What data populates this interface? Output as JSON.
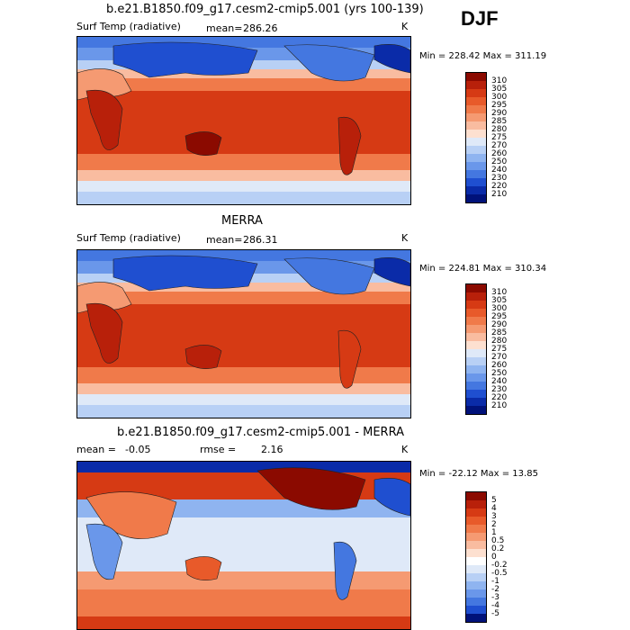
{
  "season": "DJF",
  "panels": [
    {
      "title": "b.e21.B1850.f09_g17.cesm2-cmip5.001 (yrs 100-139)",
      "left_label": "Surf Temp (radiative)",
      "mean_label": "mean=",
      "mean_value": "286.26",
      "rmse_label": "",
      "rmse_value": "",
      "units": "K",
      "minmax": "Min = 228.42 Max = 311.19",
      "levels": [
        "310",
        "305",
        "300",
        "295",
        "290",
        "285",
        "280",
        "275",
        "270",
        "260",
        "250",
        "240",
        "230",
        "220",
        "210"
      ],
      "colors": [
        "#8b0a00",
        "#b8200a",
        "#d63a14",
        "#e85a2a",
        "#f07a4a",
        "#f59a72",
        "#f9bca0",
        "#fde0d0",
        "#dfe9f8",
        "#b8d0f5",
        "#8fb4f0",
        "#6a97ea",
        "#4477e0",
        "#1f4fd0",
        "#0a2ba8",
        "#00127a"
      ]
    },
    {
      "title": "MERRA",
      "left_label": "Surf Temp (radiative)",
      "mean_label": "mean=",
      "mean_value": "286.31",
      "rmse_label": "",
      "rmse_value": "",
      "units": "K",
      "minmax": "Min = 224.81 Max = 310.34",
      "levels": [
        "310",
        "305",
        "300",
        "295",
        "290",
        "285",
        "280",
        "275",
        "270",
        "260",
        "250",
        "240",
        "230",
        "220",
        "210"
      ],
      "colors": [
        "#8b0a00",
        "#b8200a",
        "#d63a14",
        "#e85a2a",
        "#f07a4a",
        "#f59a72",
        "#f9bca0",
        "#fde0d0",
        "#dfe9f8",
        "#b8d0f5",
        "#8fb4f0",
        "#6a97ea",
        "#4477e0",
        "#1f4fd0",
        "#0a2ba8",
        "#00127a"
      ]
    },
    {
      "title": "b.e21.B1850.f09_g17.cesm2-cmip5.001 - MERRA",
      "left_label": "",
      "mean_label": "mean =",
      "mean_value": "-0.05",
      "rmse_label": "rmse =",
      "rmse_value": "2.16",
      "units": "K",
      "minmax": "Min = -22.12 Max =   13.85",
      "levels": [
        "5",
        "4",
        "3",
        "2",
        "1",
        "0.5",
        "0.2",
        "0",
        "-0.2",
        "-0.5",
        "-1",
        "-2",
        "-3",
        "-4",
        "-5"
      ],
      "colors": [
        "#8b0a00",
        "#b8200a",
        "#d63a14",
        "#e85a2a",
        "#f07a4a",
        "#f59a72",
        "#f9bca0",
        "#fde0d0",
        "#ffffff",
        "#dfe9f8",
        "#b8d0f5",
        "#8fb4f0",
        "#6a97ea",
        "#4477e0",
        "#1f4fd0",
        "#00127a"
      ]
    }
  ]
}
